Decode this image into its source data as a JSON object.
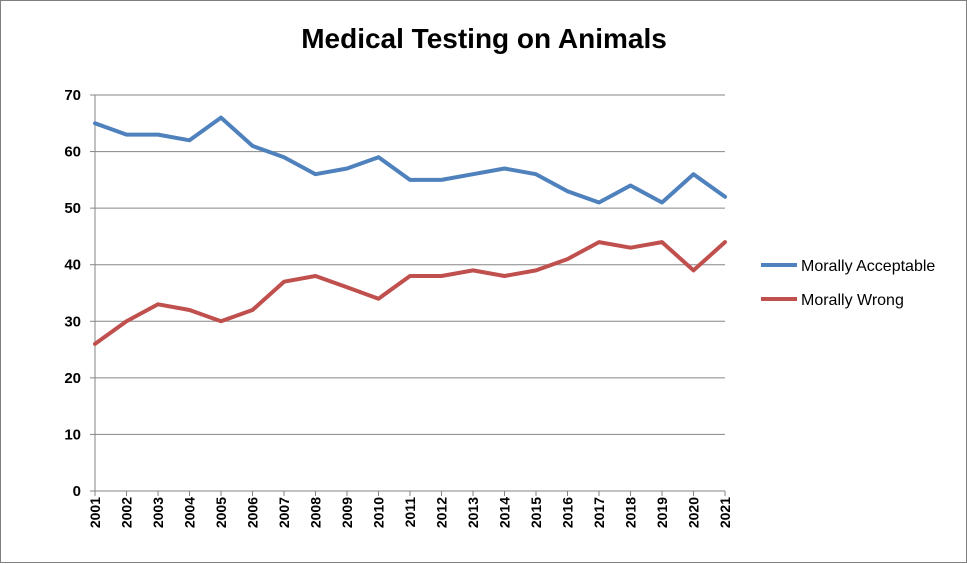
{
  "chart_data": {
    "type": "line",
    "title": "Medical Testing on Animals",
    "xlabel": "",
    "ylabel": "",
    "ylim": [
      0,
      70
    ],
    "yticks": [
      "0",
      "10",
      "20",
      "30",
      "40",
      "50",
      "60",
      "70"
    ],
    "grid": true,
    "legend_position": "right",
    "categories": [
      "2001",
      "2002",
      "2003",
      "2004",
      "2005",
      "2006",
      "2007",
      "2008",
      "2009",
      "2010",
      "2011",
      "2012",
      "2013",
      "2014",
      "2015",
      "2016",
      "2017",
      "2018",
      "2019",
      "2020",
      "2021"
    ],
    "series": [
      {
        "name": "Morally Acceptable",
        "color": "#4f81bd",
        "values": [
          65,
          63,
          63,
          62,
          66,
          61,
          59,
          56,
          57,
          59,
          55,
          55,
          56,
          57,
          56,
          53,
          51,
          54,
          51,
          56,
          52
        ]
      },
      {
        "name": "Morally Wrong",
        "color": "#c0504d",
        "values": [
          26,
          30,
          33,
          32,
          30,
          32,
          37,
          38,
          36,
          34,
          38,
          38,
          39,
          38,
          39,
          41,
          44,
          43,
          44,
          39,
          44
        ]
      }
    ]
  }
}
